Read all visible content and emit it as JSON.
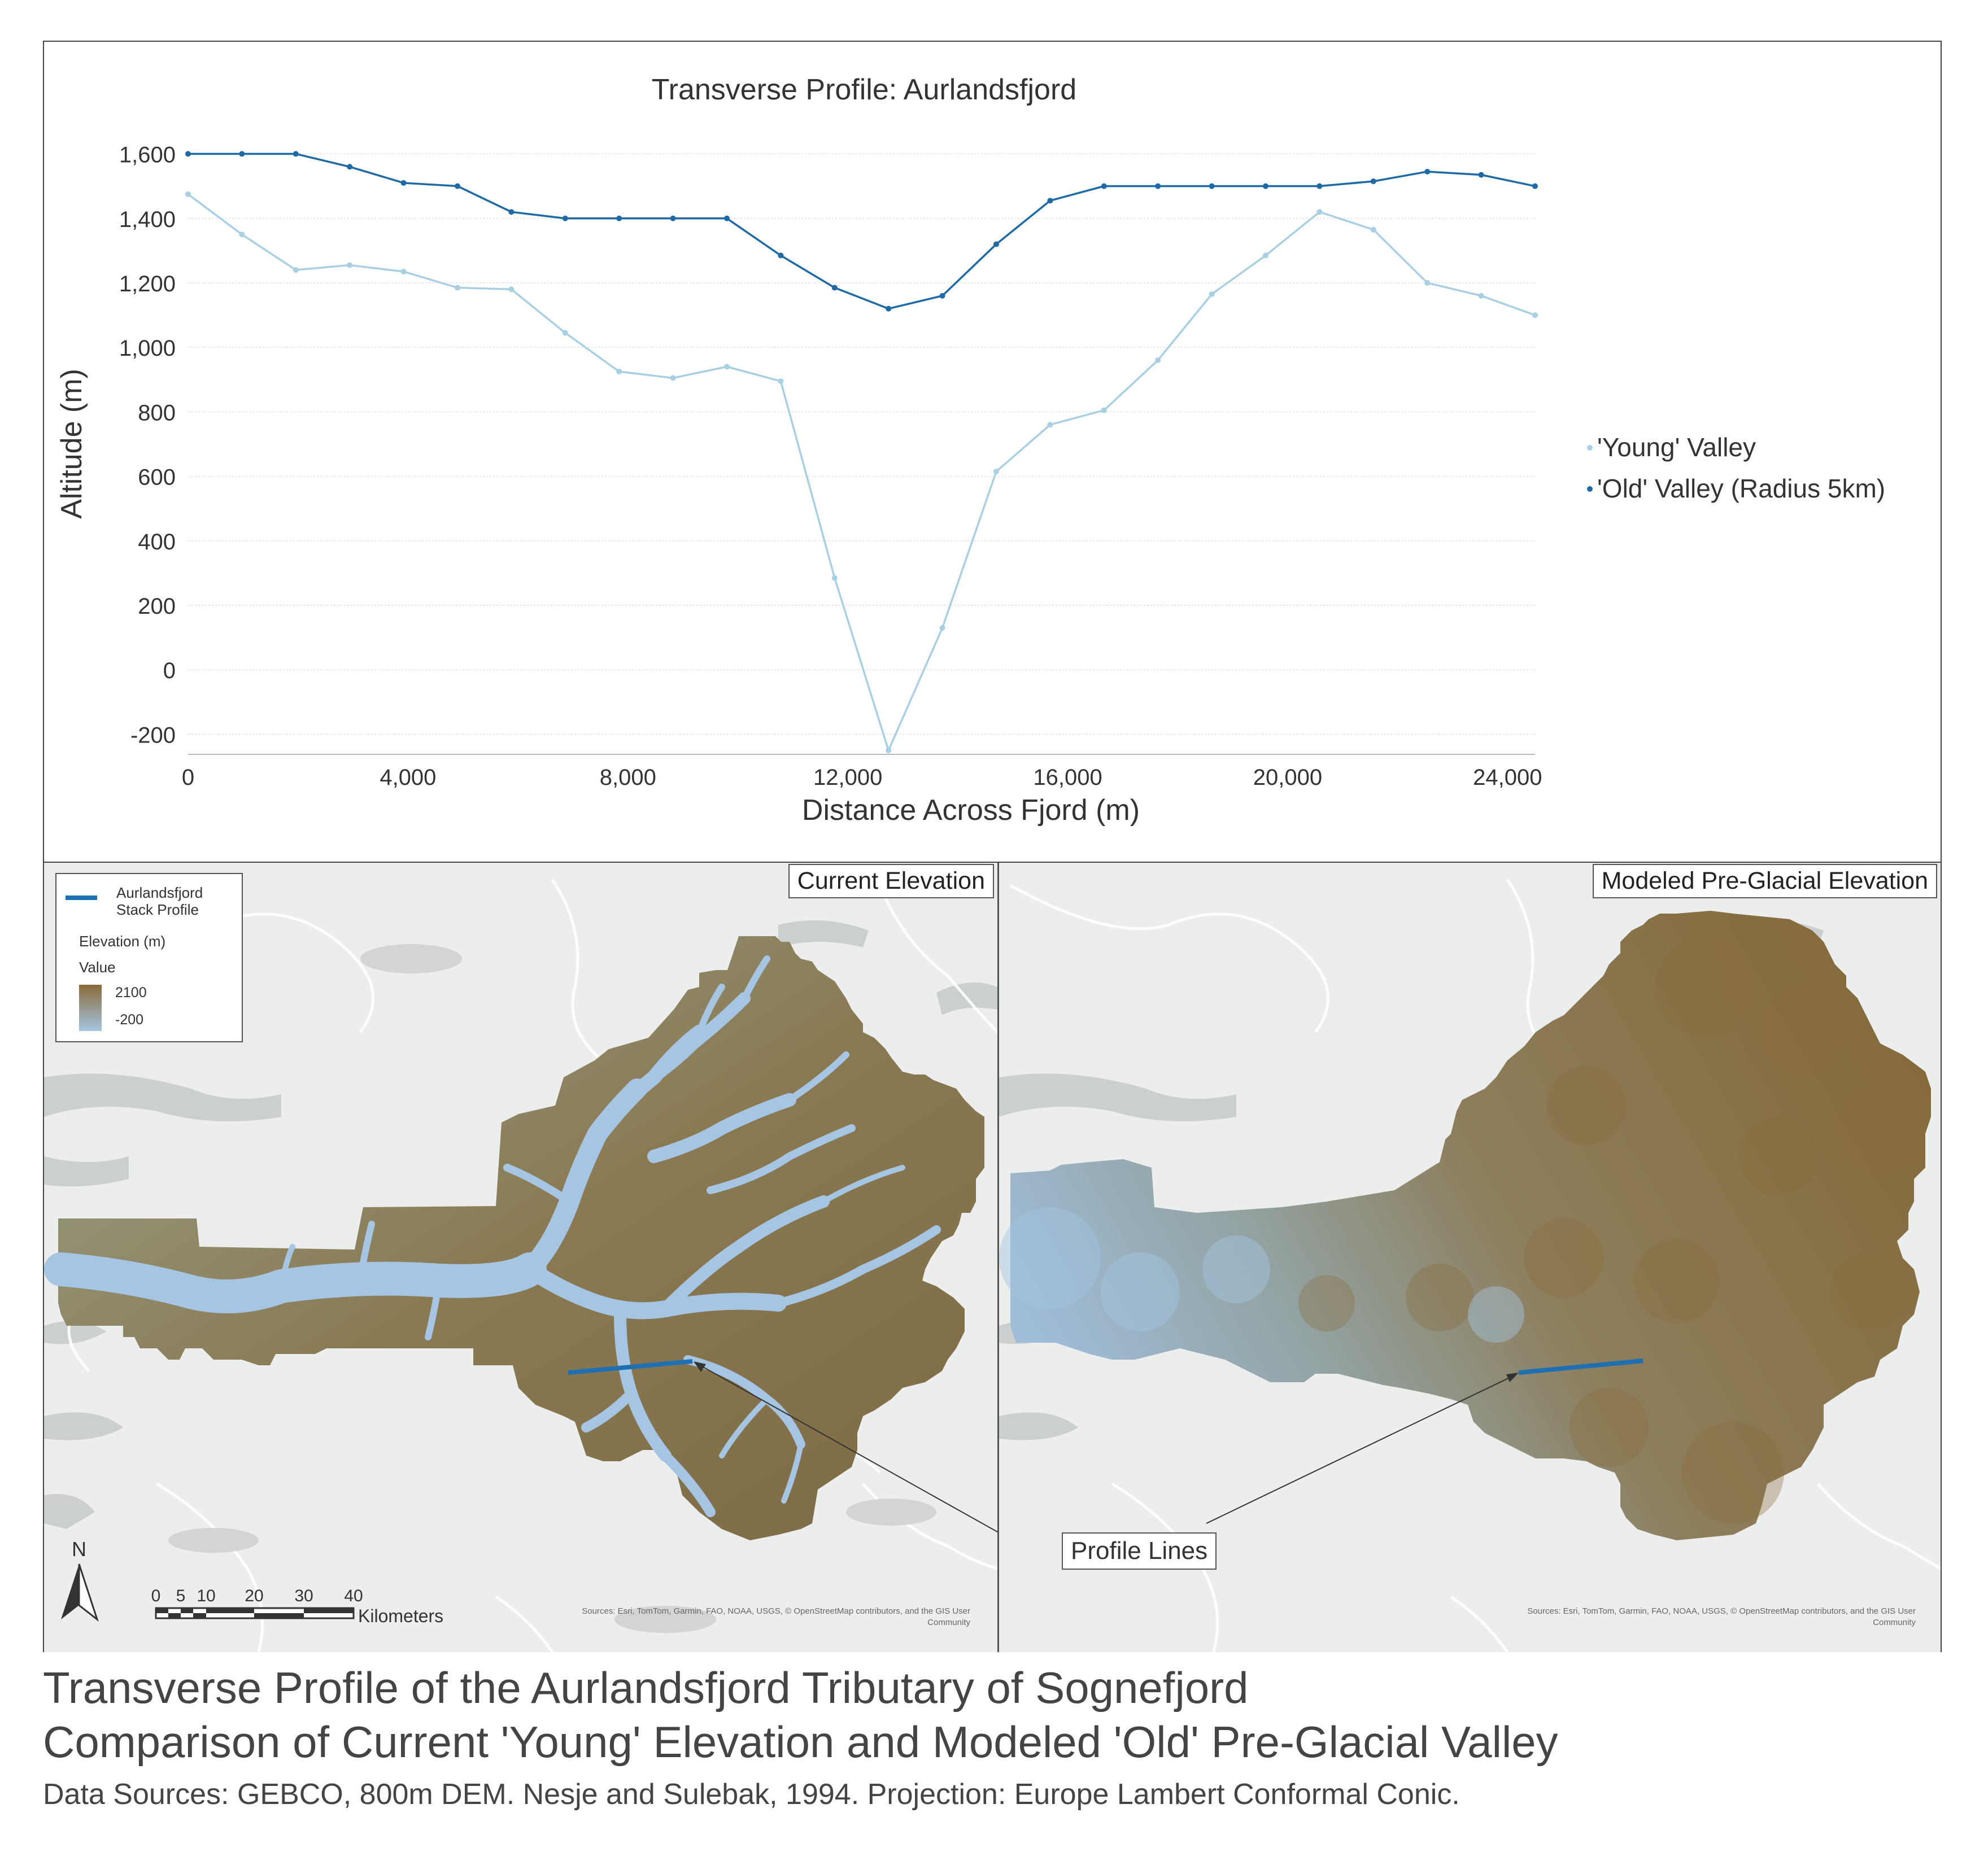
{
  "chart_data": {
    "type": "line",
    "title": "Transverse Profile: Aurlandsfjord",
    "xlabel": "Distance Across Fjord (m)",
    "ylabel": "Altitude (m)",
    "xlim": [
      0,
      24500
    ],
    "ylim": [
      -250,
      1650
    ],
    "x_ticks": [
      0,
      4000,
      8000,
      12000,
      16000,
      20000,
      24000
    ],
    "x_tick_labels": [
      "0",
      "4,000",
      "8,000",
      "12,000",
      "16,000",
      "20,000",
      "24,000"
    ],
    "y_ticks": [
      -200,
      0,
      200,
      400,
      600,
      800,
      1000,
      1200,
      1400,
      1600
    ],
    "y_tick_labels": [
      "-200",
      "0",
      "200",
      "400",
      "600",
      "800",
      "1,000",
      "1,200",
      "1,400",
      "1,600"
    ],
    "grid": "horizontal",
    "legend_position": "right",
    "series": [
      {
        "name": "'Young' Valley",
        "color": "#a9cfe3",
        "x": [
          0,
          980,
          1960,
          2940,
          3920,
          4900,
          5880,
          6860,
          7840,
          8820,
          9800,
          10780,
          11760,
          12740,
          13720,
          14700,
          15680,
          16660,
          17640,
          18620,
          19600,
          20580,
          21560,
          22540,
          23520,
          24500
        ],
        "values": [
          1475,
          1350,
          1240,
          1255,
          1235,
          1185,
          1180,
          1045,
          925,
          905,
          940,
          895,
          285,
          -250,
          130,
          615,
          760,
          805,
          960,
          1165,
          1285,
          1420,
          1365,
          1200,
          1160,
          1100
        ]
      },
      {
        "name": "'Old' Valley (Radius 5km)",
        "color": "#1f6aa5",
        "x": [
          0,
          980,
          1960,
          2940,
          3920,
          4900,
          5880,
          6860,
          7840,
          8820,
          9800,
          10780,
          11760,
          12740,
          13720,
          14700,
          15680,
          16660,
          17640,
          18620,
          19600,
          20580,
          21560,
          22540,
          23520,
          24500
        ],
        "values": [
          1600,
          1600,
          1600,
          1560,
          1510,
          1500,
          1420,
          1400,
          1400,
          1400,
          1400,
          1285,
          1185,
          1120,
          1160,
          1320,
          1455,
          1500,
          1500,
          1500,
          1500,
          1500,
          1515,
          1545,
          1535,
          1500
        ]
      }
    ]
  },
  "maps": {
    "left_label": "Current Elevation",
    "right_label": "Modeled Pre-Glacial Elevation",
    "legend": {
      "profile_label_1": "Aurlandsfjord",
      "profile_label_2": "Stack Profile",
      "elevation_title": "Elevation (m)",
      "value_title": "Value",
      "high_value": "2100",
      "low_value": "-200",
      "high_color": "#8a6a3a",
      "low_color": "#a5c5e2",
      "profile_color": "#1f6fb3"
    },
    "north_label": "N",
    "scale_labels": [
      "0",
      "5",
      "10",
      "20",
      "30",
      "40"
    ],
    "scale_unit": "Kilometers",
    "sources_line1": "Sources: Esri, TomTom, Garmin, FAO, NOAA, USGS, © OpenStreetMap contributors, and the GIS User",
    "sources_line2": "Community",
    "callout": "Profile Lines"
  },
  "caption": {
    "line1": "Transverse Profile of the Aurlandsfjord Tributary of Sognefjord",
    "line2": "Comparison of Current 'Young' Elevation and Modeled 'Old' Pre-Glacial Valley",
    "line3": "Data Sources: GEBCO, 800m DEM. Nesje and Sulebak, 1994. Projection: Europe Lambert Conformal Conic."
  }
}
